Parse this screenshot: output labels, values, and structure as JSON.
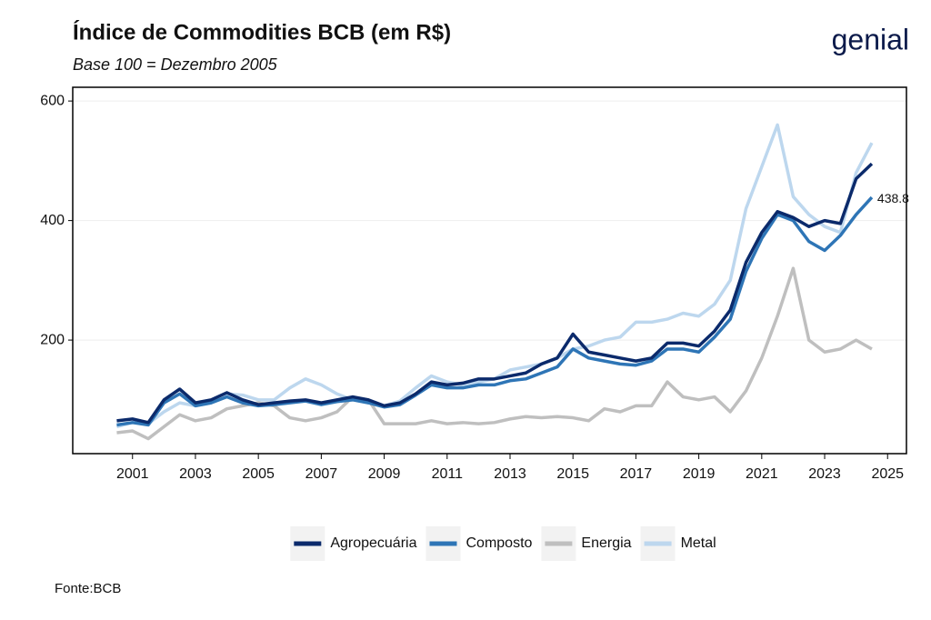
{
  "chart_data": {
    "type": "line",
    "title": "Índice de Commodities BCB (em R$)",
    "subtitle": "Base 100 = Dezembro 2005",
    "logo": "genial",
    "source": "Fonte:BCB",
    "annotation": "438.8",
    "x": [
      2000.5,
      2001,
      2001.5,
      2002,
      2002.5,
      2003,
      2003.5,
      2004,
      2004.5,
      2005,
      2005.5,
      2006,
      2006.5,
      2007,
      2007.5,
      2008,
      2008.5,
      2009,
      2009.5,
      2010,
      2010.5,
      2011,
      2011.5,
      2012,
      2012.5,
      2013,
      2013.5,
      2014,
      2014.5,
      2015,
      2015.5,
      2016,
      2016.5,
      2017,
      2017.5,
      2018,
      2018.5,
      2019,
      2019.5,
      2020,
      2020.5,
      2021,
      2021.5,
      2022,
      2022.5,
      2023,
      2023.5,
      2024,
      2024.5
    ],
    "series": [
      {
        "name": "Agropecuária",
        "color": "#0b2a6b",
        "values": [
          65,
          68,
          62,
          100,
          118,
          95,
          100,
          112,
          100,
          92,
          95,
          98,
          100,
          95,
          100,
          105,
          100,
          90,
          95,
          110,
          130,
          125,
          128,
          135,
          135,
          140,
          145,
          160,
          170,
          210,
          180,
          175,
          170,
          165,
          170,
          195,
          195,
          190,
          215,
          250,
          330,
          380,
          415,
          405,
          390,
          400,
          395,
          470,
          495
        ]
      },
      {
        "name": "Composto",
        "color": "#2e75b6",
        "values": [
          58,
          62,
          58,
          95,
          110,
          90,
          95,
          105,
          95,
          90,
          92,
          95,
          98,
          92,
          97,
          100,
          95,
          88,
          92,
          108,
          125,
          120,
          120,
          125,
          125,
          132,
          135,
          145,
          155,
          185,
          170,
          165,
          160,
          158,
          165,
          185,
          185,
          180,
          205,
          235,
          315,
          370,
          410,
          400,
          365,
          350,
          375,
          410,
          438.8
        ]
      },
      {
        "name": "Energia",
        "color": "#bfbfbf",
        "values": [
          45,
          48,
          35,
          55,
          75,
          65,
          70,
          85,
          90,
          95,
          90,
          70,
          65,
          70,
          80,
          105,
          100,
          60,
          60,
          60,
          65,
          60,
          62,
          60,
          62,
          68,
          72,
          70,
          72,
          70,
          65,
          85,
          80,
          90,
          90,
          130,
          105,
          100,
          105,
          80,
          115,
          170,
          240,
          320,
          200,
          180,
          185,
          200,
          185
        ]
      },
      {
        "name": "Metal",
        "color": "#bdd7ee",
        "values": [
          55,
          62,
          60,
          80,
          95,
          90,
          95,
          110,
          108,
          100,
          100,
          120,
          135,
          125,
          110,
          100,
          95,
          90,
          98,
          120,
          140,
          130,
          125,
          130,
          135,
          150,
          155,
          160,
          170,
          185,
          190,
          200,
          205,
          230,
          230,
          235,
          245,
          240,
          260,
          300,
          420,
          490,
          560,
          440,
          410,
          390,
          380,
          480,
          530
        ]
      }
    ],
    "xlim": [
      1999.1,
      2025.6
    ],
    "xticks": [
      2001,
      2003,
      2005,
      2007,
      2009,
      2011,
      2013,
      2015,
      2017,
      2019,
      2021,
      2023,
      2025
    ],
    "ylim": [
      10,
      623
    ],
    "yticks": [
      200,
      400,
      600
    ],
    "grid": true
  }
}
